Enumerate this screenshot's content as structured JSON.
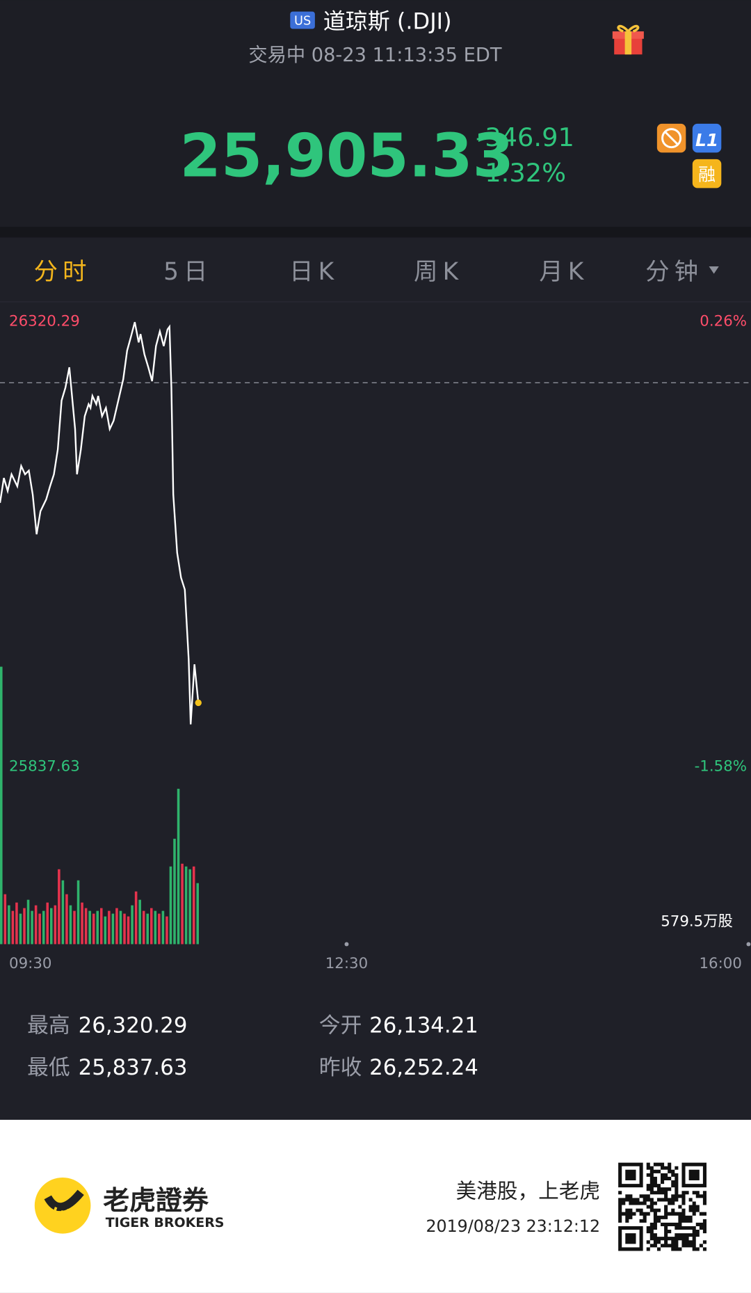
{
  "header": {
    "market_badge": "US",
    "title": "道琼斯 (.DJI)",
    "status": "交易中 08-23 11:13:35 EDT"
  },
  "quote": {
    "price": "25,905.33",
    "change": "-346.91",
    "change_pct": "-1.32%",
    "badges": [
      "L1",
      "融"
    ]
  },
  "tabs": [
    "分时",
    "5日",
    "日K",
    "周K",
    "月K",
    "分钟"
  ],
  "chart_data": {
    "type": "line",
    "xlim": [
      0,
      390
    ],
    "xticks": [
      {
        "value": 0,
        "label": "09:30"
      },
      {
        "value": 180,
        "label": "12:30"
      },
      {
        "value": 390,
        "label": "16:00"
      }
    ],
    "ylim": [
      25837.63,
      26320.29
    ],
    "yticks": [
      25837.63,
      26320.29
    ],
    "y2lim": [
      -1.58,
      0.26
    ],
    "y2ticks": [
      {
        "value": -1.58,
        "label": "-1.58%"
      },
      {
        "value": 0.26,
        "label": "0.26%"
      }
    ],
    "reference_line": 26252.24,
    "series": [
      {
        "color": "#ffffff",
        "x": [
          0,
          2,
          4,
          6,
          9,
          11,
          13,
          15,
          17,
          19,
          21,
          24,
          26,
          28,
          30,
          32,
          34,
          36,
          37,
          39,
          40,
          42,
          44,
          46,
          47,
          48,
          50,
          51,
          53,
          55,
          57,
          59,
          62,
          64,
          66,
          68,
          70,
          72,
          73,
          75,
          77,
          79,
          81,
          83,
          85,
          87,
          88,
          89,
          90,
          92,
          94,
          96,
          98,
          99,
          101,
          103
        ],
        "values": [
          26122,
          26149,
          26135,
          26153,
          26140,
          26162,
          26153,
          26157,
          26131,
          26088,
          26113,
          26126,
          26140,
          26153,
          26180,
          26233,
          26247,
          26269,
          26247,
          26202,
          26153,
          26180,
          26216,
          26229,
          26225,
          26238,
          26229,
          26238,
          26216,
          26225,
          26202,
          26211,
          26238,
          26256,
          26287,
          26302,
          26318,
          26296,
          26305,
          26283,
          26269,
          26254,
          26292,
          26308,
          26292,
          26310,
          26313,
          26247,
          26131,
          26068,
          26041,
          26028,
          25952,
          25882,
          25947,
          25905.33
        ]
      }
    ],
    "volume": {
      "x": [
        0,
        2,
        4,
        6,
        8,
        10,
        12,
        14,
        16,
        18,
        20,
        22,
        24,
        26,
        28,
        30,
        32,
        34,
        36,
        38,
        40,
        42,
        44,
        46,
        48,
        50,
        52,
        54,
        56,
        58,
        60,
        62,
        64,
        66,
        68,
        70,
        72,
        74,
        76,
        78,
        80,
        82,
        84,
        86,
        88,
        90,
        92,
        94,
        96,
        98,
        100,
        102
      ],
      "values": [
        1000,
        180,
        140,
        120,
        150,
        110,
        130,
        160,
        120,
        140,
        110,
        120,
        150,
        130,
        140,
        270,
        230,
        180,
        140,
        120,
        230,
        150,
        130,
        120,
        110,
        120,
        130,
        100,
        120,
        110,
        130,
        120,
        110,
        100,
        140,
        190,
        160,
        120,
        110,
        130,
        120,
        110,
        120,
        100,
        280,
        380,
        560,
        290,
        280,
        270,
        280,
        220
      ],
      "colors": [
        "#2fb36c",
        "#e5334d",
        "#2fb36c",
        "#e5334d",
        "#e5334d",
        "#2fb36c",
        "#e5334d",
        "#2fb36c",
        "#2fb36c",
        "#e5334d",
        "#e5334d",
        "#2fb36c",
        "#e5334d",
        "#2fb36c",
        "#e5334d",
        "#e5334d",
        "#2fb36c",
        "#e5334d",
        "#2fb36c",
        "#e5334d",
        "#2fb36c",
        "#e5334d",
        "#e5334d",
        "#2fb36c",
        "#e5334d",
        "#2fb36c",
        "#e5334d",
        "#2fb36c",
        "#e5334d",
        "#2fb36c",
        "#e5334d",
        "#2fb36c",
        "#e5334d",
        "#e5334d",
        "#2fb36c",
        "#e5334d",
        "#2fb36c",
        "#e5334d",
        "#2fb36c",
        "#e5334d",
        "#2fb36c",
        "#e5334d",
        "#2fb36c",
        "#e5334d",
        "#2fb36c",
        "#2fb36c",
        "#2fb36c",
        "#e5334d",
        "#2fb36c",
        "#2fb36c",
        "#e5334d",
        "#2fb36c"
      ],
      "ylim": [
        0,
        579.5
      ],
      "yticks": [
        {
          "value": 579.5,
          "label": "579.5万股"
        }
      ]
    }
  },
  "stats": [
    {
      "label": "最高",
      "value": "26,320.29"
    },
    {
      "label": "今开",
      "value": "26,134.21"
    },
    {
      "label": "最低",
      "value": "25,837.63"
    },
    {
      "label": "昨收",
      "value": "26,252.24"
    }
  ],
  "footer": {
    "brand": "老虎證券",
    "brand_en": "TIGER BROKERS",
    "slogan": "美港股，上老虎",
    "timestamp": "2019/08/23 23:12:12"
  }
}
